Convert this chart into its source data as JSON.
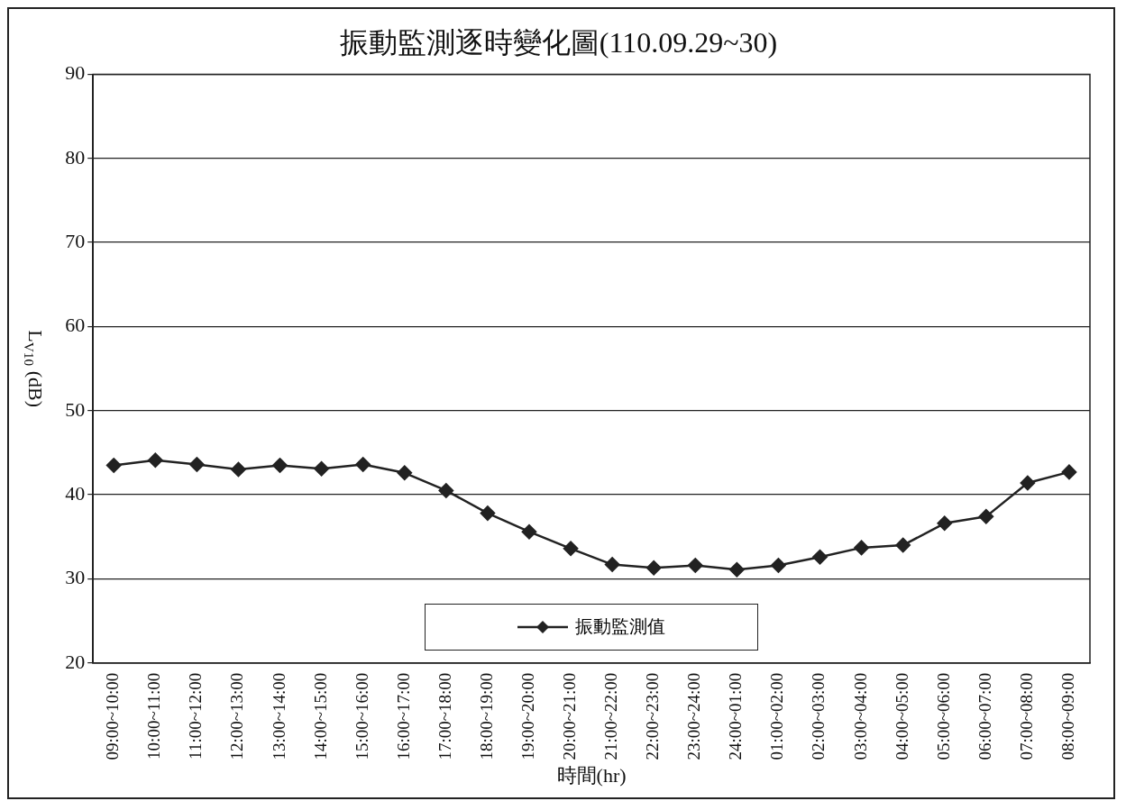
{
  "chart_data": {
    "type": "line",
    "title": "振動監測逐時變化圖(110.09.29~30)",
    "xlabel": "時間(hr)",
    "ylabel": "L$_{V10}$ (dB)",
    "categories": [
      "09:00~10:00",
      "10:00~11:00",
      "11:00~12:00",
      "12:00~13:00",
      "13:00~14:00",
      "14:00~15:00",
      "15:00~16:00",
      "16:00~17:00",
      "17:00~18:00",
      "18:00~19:00",
      "19:00~20:00",
      "20:00~21:00",
      "21:00~22:00",
      "22:00~23:00",
      "23:00~24:00",
      "24:00~01:00",
      "01:00~02:00",
      "02:00~03:00",
      "03:00~04:00",
      "04:00~05:00",
      "05:00~06:00",
      "06:00~07:00",
      "07:00~08:00",
      "08:00~09:00"
    ],
    "series": [
      {
        "name": "振動監測值",
        "color": "#222222",
        "values": [
          43.5,
          44.1,
          43.6,
          43.0,
          43.5,
          43.1,
          43.6,
          42.6,
          40.5,
          37.8,
          35.6,
          33.6,
          31.7,
          31.3,
          31.6,
          31.1,
          31.6,
          32.6,
          33.7,
          34.0,
          36.6,
          37.4,
          41.4,
          42.7
        ]
      }
    ],
    "ylim": [
      20,
      90
    ],
    "yticks": [
      20,
      30,
      40,
      50,
      60,
      70,
      80,
      90
    ],
    "grid": "y",
    "legend": "bottom",
    "marker": "diamond",
    "line_style": "solid"
  }
}
